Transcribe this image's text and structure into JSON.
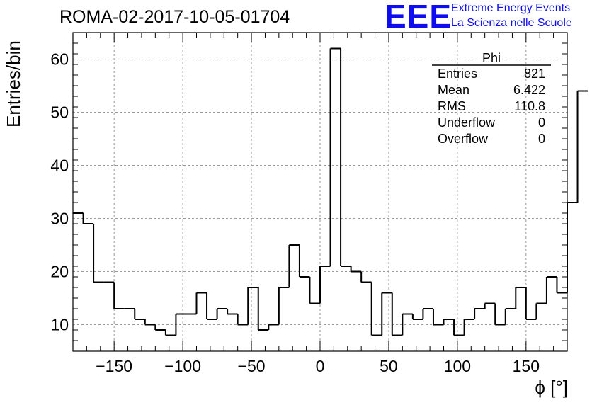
{
  "header": {
    "title": "ROMA-02-2017-10-05-01704",
    "logo_text": "EEE",
    "logo_line1": "Extreme Energy Events",
    "logo_line2": "La Scienza nelle Scuole"
  },
  "colors": {
    "logo": "#0d0df0",
    "grid": "#9a9a9a",
    "line": "#000000"
  },
  "stats": {
    "name": "Phi",
    "rows": [
      {
        "label": "Entries",
        "value": "821"
      },
      {
        "label": "Mean",
        "value": "6.422"
      },
      {
        "label": "RMS",
        "value": "110.8"
      },
      {
        "label": "Underflow",
        "value": "0"
      },
      {
        "label": "Overflow",
        "value": "0"
      }
    ]
  },
  "chart_data": {
    "type": "histogram",
    "title": "ROMA-02-2017-10-05-01704",
    "xlabel": "ϕ [°]",
    "ylabel": "Entries/bin",
    "xlim": [
      -180,
      180
    ],
    "ylim": [
      5,
      65
    ],
    "grid": true,
    "stats_box_position": "top-right",
    "xticks": [
      -150,
      -100,
      -50,
      0,
      50,
      100,
      150
    ],
    "yticks": [
      10,
      20,
      30,
      40,
      50,
      60
    ],
    "bin_width": 7.5,
    "bin_edges_start": -180,
    "values": [
      31,
      29,
      18,
      18,
      13,
      13,
      11,
      10,
      9,
      8,
      12,
      12,
      16,
      11,
      13,
      12,
      10,
      17,
      9,
      10,
      17,
      25,
      19,
      14,
      21,
      62,
      21,
      20,
      18,
      8,
      16,
      8,
      12,
      11,
      13,
      10,
      11,
      8,
      11,
      13,
      14,
      10,
      13,
      17,
      11,
      14,
      19,
      16,
      33,
      54
    ]
  }
}
